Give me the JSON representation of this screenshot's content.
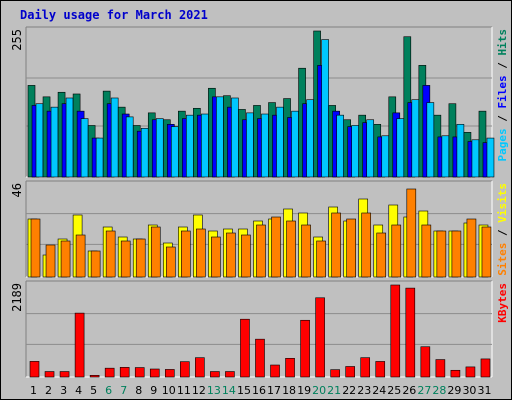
{
  "colors": {
    "background": "#c0c0c0",
    "title": "#0000cc",
    "hits": "#00805c",
    "files": "#0000ff",
    "pages": "#00c8ff",
    "visits": "#ffff00",
    "sites": "#ff8000",
    "kbytes": "#ff0000",
    "weekend_label": "#00805c",
    "weekday_label": "#000000",
    "separator": "#000000"
  },
  "chart_data": {
    "type": "bar",
    "title": "Daily usage for March 2021",
    "x": [
      "1",
      "2",
      "3",
      "4",
      "5",
      "6",
      "7",
      "8",
      "9",
      "10",
      "11",
      "12",
      "13",
      "14",
      "15",
      "16",
      "17",
      "18",
      "19",
      "20",
      "21",
      "22",
      "23",
      "24",
      "25",
      "26",
      "27",
      "28",
      "29",
      "30",
      "31"
    ],
    "weekend_days": [
      "6",
      "7",
      "13",
      "14",
      "20",
      "21",
      "27",
      "28"
    ],
    "panels": [
      {
        "id": "hits",
        "ymax_label": "255",
        "ylim": [
          0,
          255
        ],
        "legend": [
          {
            "text": "Pages",
            "color": "#00c8ff"
          },
          {
            "text": " / ",
            "color": "#000000"
          },
          {
            "text": "Files",
            "color": "#0000ff"
          },
          {
            "text": " / ",
            "color": "#000000"
          },
          {
            "text": "Hits",
            "color": "#00805c"
          }
        ],
        "series": [
          {
            "name": "Hits",
            "color": "#00805c",
            "values": [
              160,
              140,
              148,
              145,
              90,
              150,
              122,
              90,
              112,
              100,
              115,
              120,
              155,
              142,
              118,
              125,
              130,
              137,
              190,
              255,
              125,
              100,
              108,
              92,
              140,
              245,
              195,
              108,
              128,
              78,
              115
            ]
          },
          {
            "name": "Files",
            "color": "#0000ff",
            "values": [
              125,
              115,
              128,
              115,
              68,
              128,
              110,
              80,
              100,
              92,
              102,
              108,
              140,
              122,
              100,
              102,
              108,
              104,
              128,
              195,
              115,
              88,
              95,
              70,
              112,
              130,
              160,
              70,
              70,
              62,
              60
            ]
          },
          {
            "name": "Pages",
            "color": "#00c8ff",
            "values": [
              128,
              122,
              138,
              102,
              68,
              138,
              105,
              85,
              102,
              88,
              108,
              110,
              140,
              138,
              112,
              110,
              122,
              115,
              135,
              240,
              108,
              90,
              100,
              72,
              102,
              135,
              130,
              72,
              92,
              65,
              68
            ]
          }
        ]
      },
      {
        "id": "visits",
        "ymax_label": "46",
        "ylim": [
          0,
          46
        ],
        "legend": [
          {
            "text": "Sites",
            "color": "#ff8000"
          },
          {
            "text": " / ",
            "color": "#000000"
          },
          {
            "text": "Visits",
            "color": "#ffff00"
          }
        ],
        "series": [
          {
            "name": "Visits",
            "color": "#ffff00",
            "values": [
              29,
              11,
              19,
              31,
              13,
              25,
              20,
              19,
              26,
              17,
              25,
              31,
              23,
              24,
              24,
              28,
              29,
              34,
              32,
              20,
              35,
              28,
              39,
              26,
              36,
              30,
              33,
              23,
              23,
              27,
              26
            ]
          },
          {
            "name": "Sites",
            "color": "#ff8000",
            "values": [
              29,
              16,
              18,
              21,
              13,
              23,
              18,
              19,
              25,
              15,
              23,
              24,
              20,
              22,
              21,
              26,
              30,
              28,
              26,
              18,
              32,
              29,
              32,
              22,
              26,
              44,
              26,
              23,
              23,
              29,
              25
            ]
          }
        ]
      },
      {
        "id": "kbytes",
        "ymax_label": "2189",
        "ylim": [
          0,
          2189
        ],
        "legend": [
          {
            "text": "KBytes",
            "color": "#ff0000"
          }
        ],
        "series": [
          {
            "name": "KBytes",
            "color": "#ff0000",
            "values": [
              372,
              130,
              130,
              1520,
              40,
              210,
              230,
              225,
              190,
              180,
              365,
              460,
              130,
              130,
              1375,
              900,
              285,
              445,
              1350,
              1885,
              175,
              250,
              460,
              370,
              2189,
              2115,
              720,
              415,
              160,
              240,
              430
            ]
          }
        ]
      }
    ]
  }
}
